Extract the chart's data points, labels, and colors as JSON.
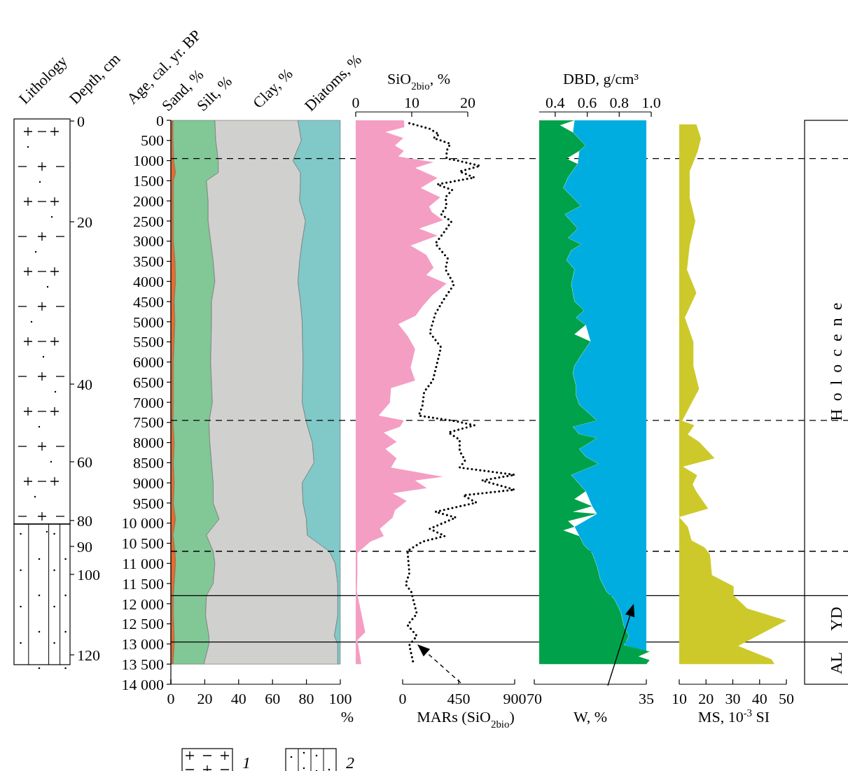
{
  "chart_data": [
    {
      "type": "other",
      "title": "Lithology",
      "ylabel": "Depth, cm",
      "annotations": [
        "0",
        "20",
        "40",
        "60",
        "80",
        "90",
        "100",
        "120",
        "1",
        "2"
      ]
    },
    {
      "type": "area",
      "stacked": true,
      "orientation": "horizontal",
      "ylabel": "Age, cal. yr. BP",
      "xlabel": "%",
      "xlim": [
        0,
        100
      ],
      "xticks": [
        0,
        20,
        40,
        60,
        80,
        100
      ],
      "ylim": [
        14000,
        0
      ],
      "yticks": [
        0,
        500,
        1000,
        1500,
        2000,
        2500,
        3000,
        3500,
        4000,
        4500,
        5000,
        5500,
        6000,
        6500,
        7000,
        7500,
        8000,
        8500,
        9000,
        9500,
        {
          "value": 10000,
          "label": "10 000"
        },
        {
          "value": 10500,
          "label": "10 500"
        },
        {
          "value": 11000,
          "label": "11 000"
        },
        {
          "value": 11500,
          "label": "11 500"
        },
        {
          "value": 12000,
          "label": "12 000"
        },
        {
          "value": 12500,
          "label": "12 500"
        },
        {
          "value": 13000,
          "label": "13 000"
        },
        {
          "value": 13500,
          "label": "13 500"
        },
        {
          "value": 14000,
          "label": "14 000"
        }
      ],
      "x": [
        0,
        500,
        1000,
        1300,
        1500,
        2000,
        2500,
        3000,
        3500,
        4000,
        4500,
        5000,
        6000,
        7000,
        7500,
        8000,
        8500,
        9000,
        9500,
        9900,
        10300,
        10700,
        11000,
        11500,
        11800,
        12300,
        12800,
        13000,
        13500
      ],
      "series": [
        {
          "name": "Sand, %",
          "color": "#ec6a28",
          "values": [
            1.3,
            1.3,
            1.7,
            2.8,
            1.5,
            1.5,
            1.5,
            1.5,
            2.5,
            2.8,
            2,
            2.4,
            1.5,
            1.5,
            1.3,
            2,
            1.5,
            2,
            1.5,
            2.8,
            1.3,
            2.5,
            2.8,
            2,
            1.5,
            1.5,
            2,
            2,
            1.3
          ]
        },
        {
          "name": "Silt, %",
          "color": "#82c796",
          "values": [
            24.7,
            25.2,
            26.3,
            25.2,
            19.5,
            20.5,
            20.5,
            22,
            22.5,
            23.2,
            22,
            21.6,
            22,
            23,
            21.2,
            21,
            22.5,
            23,
            23.5,
            25.7,
            19.7,
            22.5,
            23.2,
            23,
            19.5,
            19,
            20.5,
            20.5,
            18.2
          ]
        },
        {
          "name": "Clay, %",
          "color": "#d0d0ce",
          "values": [
            49,
            50.5,
            44,
            48.5,
            55.5,
            54,
            57.5,
            54,
            51,
            49,
            52.5,
            53.5,
            54.5,
            53,
            57.5,
            60.5,
            60.5,
            52.5,
            53,
            51.5,
            59.5,
            68.5,
            71,
            73.5,
            77.5,
            78,
            74,
            76,
            79
          ]
        },
        {
          "name": "Diatoms, %",
          "color": "#80c9c8",
          "values": [
            25,
            23,
            28,
            23.5,
            23.5,
            24,
            20.5,
            22.5,
            24,
            25,
            23.5,
            22.5,
            22,
            22.5,
            20,
            16.5,
            15.5,
            22.5,
            22,
            20,
            19.5,
            6.5,
            3,
            1.5,
            1.5,
            1.5,
            3.5,
            1.5,
            1.5
          ]
        }
      ],
      "ref_lines": [
        {
          "axis": "y",
          "value": 950,
          "line_style": "dashed"
        },
        {
          "axis": "y",
          "value": 7450,
          "line_style": "dashed"
        },
        {
          "axis": "y",
          "value": 10700,
          "line_style": "dashed"
        },
        {
          "axis": "y",
          "value": 11800,
          "line_style": "solid"
        },
        {
          "axis": "y",
          "value": 12950,
          "line_style": "solid"
        }
      ],
      "annotations": [
        "Holocene",
        "YD",
        "AL"
      ]
    },
    {
      "type": "area",
      "orientation": "horizontal",
      "tick_labels": "x",
      "ylim": [
        14000,
        0
      ],
      "x2label": "SiO$_{2bio}$, %",
      "x2lim": [
        0,
        20
      ],
      "x2ticks": [
        0,
        10,
        20
      ],
      "xlabel": "MARs (SiO$_{2bio}$)",
      "xlim": [
        0,
        900
      ],
      "xticks": [
        0,
        450,
        900
      ],
      "series": [
        {
          "type": "area",
          "axis": "x2",
          "color": "#f49ec4",
          "x": [
            0,
            170,
            290,
            440,
            625,
            760,
            900,
            1040,
            1180,
            1430,
            1680,
            1910,
            2140,
            2280,
            2480,
            2690,
            2860,
            3110,
            3340,
            3660,
            3840,
            4050,
            4350,
            4620,
            4850,
            5060,
            5360,
            5680,
            6140,
            6460,
            6650,
            7010,
            7330,
            7450,
            7610,
            7750,
            7980,
            8160,
            8390,
            8620,
            8850,
            8940,
            9130,
            9260,
            9450,
            9680,
            9860,
            10140,
            10320,
            10460,
            10740,
            11240,
            11700,
            12710,
            12900,
            13500
          ],
          "values": [
            8.6,
            8.7,
            5.3,
            8.5,
            7,
            8.6,
            7.6,
            13.9,
            10.6,
            14.6,
            11.6,
            15.1,
            13.1,
            13.6,
            15.6,
            11.3,
            14.6,
            9.8,
            12.6,
            13.9,
            12.6,
            16.2,
            13.6,
            11.9,
            10.7,
            7.6,
            9.3,
            10.6,
            9.8,
            10.6,
            6.3,
            6.1,
            4.1,
            8.6,
            7.9,
            5,
            7.3,
            5.3,
            7.3,
            6.3,
            15.6,
            10.6,
            12.7,
            6.6,
            9.1,
            7,
            6.6,
            4.3,
            5,
            2.6,
            0.3,
            0.3,
            0.2,
            1.7,
            0.3,
            1
          ]
        },
        {
          "type": "line",
          "line_style": "dotted",
          "color": "#000000",
          "x": [
            70,
            210,
            350,
            440,
            580,
            760,
            950,
            990,
            1130,
            1270,
            1420,
            1590,
            1730,
            1910,
            2140,
            2330,
            2510,
            2780,
            3060,
            3430,
            3700,
            4070,
            4440,
            4800,
            5270,
            5630,
            6090,
            6460,
            6740,
            7100,
            7330,
            7470,
            7570,
            7750,
            7930,
            8210,
            8440,
            8620,
            8800,
            8940,
            9170,
            9310,
            9490,
            9720,
            9860,
            10140,
            10320,
            10460,
            10690,
            11240,
            11520,
            11700,
            12250,
            12530,
            12800,
            13030,
            13450
          ],
          "values": [
            54,
            218,
            293,
            248,
            383,
            353,
            353,
            428,
            622,
            458,
            577,
            278,
            398,
            344,
            353,
            308,
            392,
            332,
            263,
            362,
            344,
            413,
            332,
            263,
            218,
            308,
            272,
            242,
            173,
            158,
            129,
            428,
            577,
            368,
            458,
            458,
            502,
            458,
            900,
            637,
            900,
            487,
            592,
            263,
            428,
            218,
            338,
            158,
            39,
            54,
            24,
            69,
            114,
            39,
            114,
            54,
            84
          ]
        }
      ]
    },
    {
      "type": "area",
      "orientation": "horizontal",
      "tick_labels": "x",
      "ylim": [
        14000,
        0
      ],
      "x2label": "DBD, g/cm³",
      "x2lim": [
        0.3,
        1.0
      ],
      "x2ticks": [
        0.4,
        0.6,
        0.8,
        {
          "value": 1.0,
          "label": "1.0"
        }
      ],
      "xlabel": "W, %",
      "xlim": [
        70,
        35
      ],
      "xticks": [
        70,
        35
      ],
      "x": [
        0,
        120,
        300,
        625,
        760,
        950,
        1080,
        1410,
        1680,
        2120,
        2330,
        2690,
        2920,
        3080,
        3230,
        3470,
        3700,
        4070,
        4490,
        4720,
        4900,
        5080,
        5310,
        5490,
        5720,
        6090,
        6280,
        6600,
        6830,
        7060,
        7450,
        7610,
        7790,
        7890,
        8160,
        8350,
        8530,
        8800,
        9030,
        9210,
        9400,
        9580,
        9720,
        9770,
        9950,
        10090,
        10180,
        10320,
        10550,
        10740,
        11060,
        11380,
        11700,
        11890,
        12220,
        12570,
        12800,
        13030,
        13190,
        13310,
        13400,
        13500
      ],
      "series": [
        {
          "color": "#00ade0",
          "values": [
            57.4,
            null,
            57.9,
            53.9,
            55.9,
            null,
            56.4,
            59.4,
            60.9,
            55.4,
            60.4,
            56.4,
            59.4,
            55.4,
            58.4,
            59.9,
            57.4,
            58.4,
            57.4,
            54.4,
            56.9,
            53.9,
            null,
            52.4,
            54.4,
            57.4,
            57.9,
            56.9,
            56.9,
            55.9,
            50.4,
            57.9,
            55.9,
            50.4,
            55.9,
            53.9,
            49.9,
            58.4,
            55.9,
            53.9,
            null,
            51.9,
            null,
            50.4,
            null,
            57.4,
            null,
            55.9,
            54.4,
            51.9,
            50.4,
            49.4,
            47.4,
            44.9,
            42.9,
            41.9,
            40.4,
            41.9,
            35,
            null,
            35,
            35
          ]
        },
        {
          "axis": "x2",
          "color": "#00a14b",
          "values": [
            0.52,
            0.43,
            0.51,
            0.59,
            0.55,
            0.47,
            0.54,
            0.48,
            0.45,
            0.56,
            0.46,
            0.54,
            0.48,
            0.56,
            0.5,
            0.47,
            0.52,
            0.5,
            0.52,
            0.58,
            0.53,
            0.59,
            0.52,
            0.62,
            0.58,
            0.52,
            0.51,
            0.53,
            0.53,
            0.55,
            0.66,
            0.51,
            0.55,
            0.66,
            0.55,
            0.59,
            0.67,
            0.5,
            0.55,
            0.59,
            0.52,
            0.63,
            0.51,
            0.66,
            0.48,
            0.52,
            0.45,
            0.55,
            0.58,
            0.63,
            0.66,
            0.68,
            0.72,
            0.77,
            0.81,
            0.83,
            0.86,
            0.83,
            0.99,
            0.92,
            0.99,
            0.97
          ]
        }
      ]
    },
    {
      "type": "area",
      "orientation": "horizontal",
      "tick_labels": "x",
      "ylim": [
        14000,
        0
      ],
      "xlabel": "MS, 10$^{-3}$ SI",
      "xlim": [
        10,
        50
      ],
      "xticks": [
        10,
        20,
        30,
        40,
        50
      ],
      "x": [
        100,
        450,
        770,
        1270,
        1920,
        2500,
        3110,
        3710,
        4280,
        4900,
        5500,
        6100,
        6670,
        7460,
        7570,
        7800,
        7980,
        8390,
        8600,
        8810,
        9040,
        9220,
        9640,
        9850,
        10090,
        10430,
        10600,
        10780,
        11290,
        11570,
        11800,
        12120,
        12420,
        13050,
        13380,
        13500
      ],
      "series": [
        {
          "color": "#cdc92a",
          "values": [
            16.4,
            18.1,
            16.9,
            13.9,
            13.9,
            16,
            13.9,
            12.9,
            16.4,
            12.1,
            15.3,
            15.3,
            17.4,
            11.1,
            15.6,
            13.2,
            17.4,
            23.2,
            11.4,
            16.7,
            15,
            16.4,
            20.8,
            10,
            13.2,
            14.6,
            19.4,
            21.5,
            22.2,
            30.3,
            30.3,
            35.4,
            50,
            32,
            44.4,
            45.6
          ]
        }
      ]
    }
  ]
}
